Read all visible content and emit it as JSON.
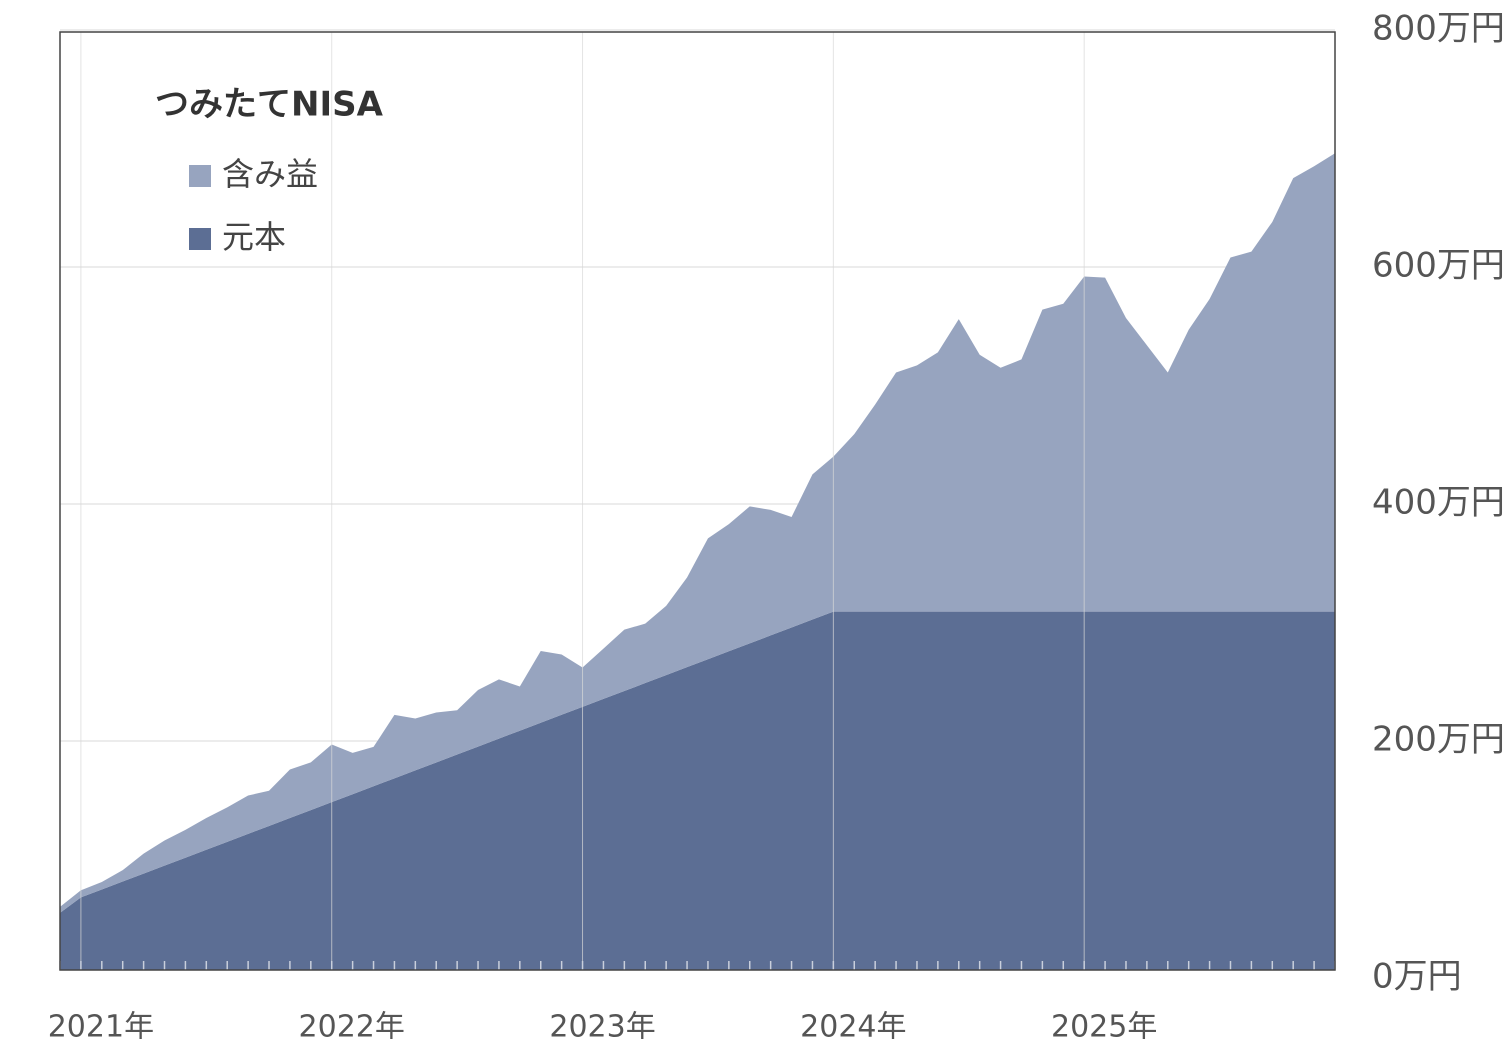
{
  "chart_data": {
    "type": "stacked_area",
    "title": "つみたてNISA",
    "categories": [
      null,
      "2021年",
      null,
      null,
      null,
      null,
      null,
      null,
      null,
      null,
      null,
      null,
      null,
      "2022年",
      null,
      null,
      null,
      null,
      null,
      null,
      null,
      null,
      null,
      null,
      null,
      "2023年",
      null,
      null,
      null,
      null,
      null,
      null,
      null,
      null,
      null,
      null,
      null,
      "2024年",
      null,
      null,
      null,
      null,
      null,
      null,
      null,
      null,
      null,
      null,
      null,
      "2025年",
      null,
      null,
      null,
      null,
      null,
      null,
      null,
      null,
      null,
      null,
      null,
      null
    ],
    "series": [
      {
        "name": "含み益",
        "color": "#97a4bf",
        "values": [
          5,
          6,
          6.3,
          9.6,
          16.9,
          21.2,
          23.5,
          26.8,
          29.1,
          32.4,
          29.7,
          41,
          40.3,
          48.6,
          34.9,
          33.2,
          53.5,
          43.8,
          42.1,
          37.4,
          47.7,
          50,
          37.3,
          60.6,
          50.9,
          33.2,
          42.5,
          51.8,
          50.1,
          58.4,
          75.7,
          102,
          107.3,
          115.6,
          105.9,
          93.2,
          122.5,
          130.8,
          149.8,
          174.8,
          201.8,
          207.8,
          218.8,
          246.8,
          216.8,
          205.8,
          212.8,
          254.8,
          259.8,
          282.8,
          281.8,
          247.8,
          224.8,
          201.8,
          237.8,
          263.8,
          298.8,
          303.8,
          328.8,
          365.8,
          375.8,
          386.8
        ]
      },
      {
        "name": "元本",
        "color": "#5c6e94",
        "values": [
          55,
          68,
          74.7,
          81.4,
          88.1,
          94.8,
          101.5,
          108.2,
          114.9,
          121.6,
          128.3,
          135,
          141.7,
          148.4,
          155.1,
          161.8,
          168.5,
          175.2,
          181.9,
          188.6,
          195.3,
          202,
          208.7,
          215.4,
          222.1,
          228.8,
          235.5,
          242.2,
          248.9,
          255.6,
          262.3,
          269,
          275.7,
          282.4,
          289.1,
          295.8,
          302.5,
          309.2,
          309.2,
          309.2,
          309.2,
          309.2,
          309.2,
          309.2,
          309.2,
          309.2,
          309.2,
          309.2,
          309.2,
          309.2,
          309.2,
          309.2,
          309.2,
          309.2,
          309.2,
          309.2,
          309.2,
          309.2,
          309.2,
          309.2,
          309.2,
          309.2
        ]
      }
    ],
    "ylim": [
      0,
      800
    ],
    "yticks": [
      {
        "value": 0,
        "label": "0万円"
      },
      {
        "value": 200,
        "label": "200万円"
      },
      {
        "value": 400,
        "label": "400万円"
      },
      {
        "value": 600,
        "label": "600万円"
      },
      {
        "value": 800,
        "label": "800万円"
      }
    ],
    "grid": true
  }
}
